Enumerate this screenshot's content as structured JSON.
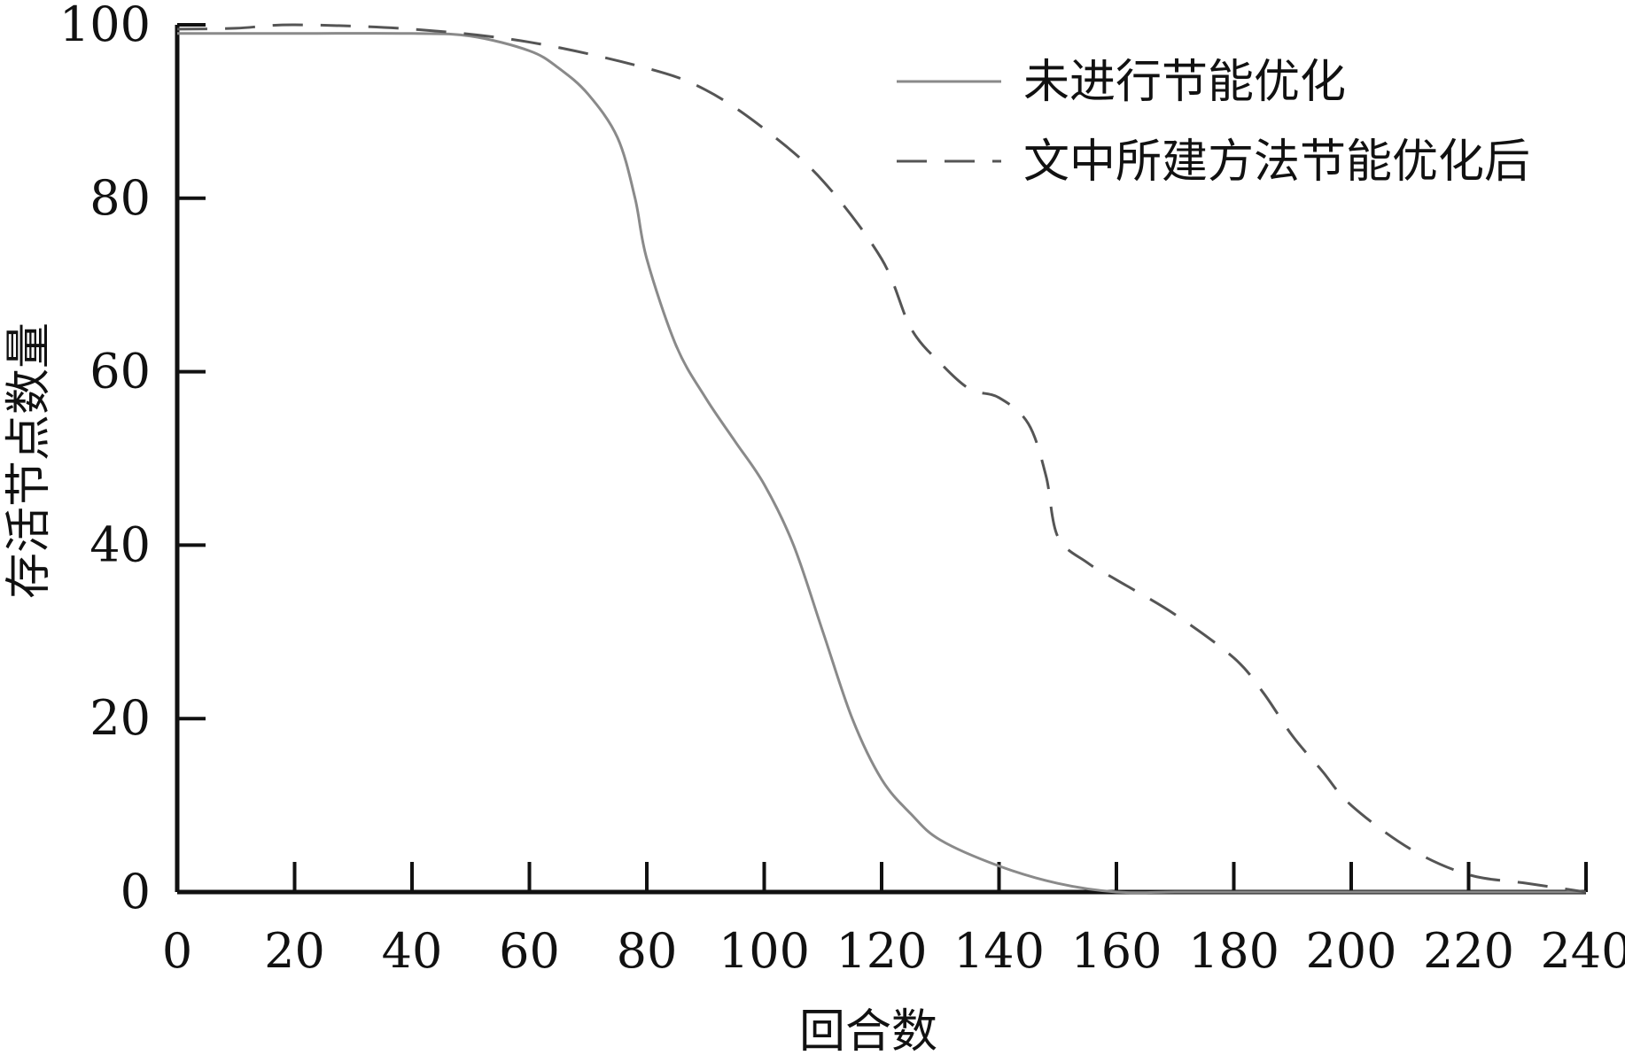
{
  "chart_data": {
    "type": "line",
    "title": "",
    "xlabel": "回合数",
    "ylabel": "存活节点数量",
    "xlim": [
      0,
      240
    ],
    "ylim": [
      0,
      100
    ],
    "x_ticks": [
      0,
      20,
      40,
      60,
      80,
      100,
      120,
      140,
      160,
      180,
      200,
      220,
      240
    ],
    "y_ticks": [
      0,
      20,
      40,
      60,
      80,
      100
    ],
    "grid": false,
    "legend_position": "top-right",
    "series": [
      {
        "name": "未进行节能优化",
        "style": "solid",
        "color": "#8a8a8a",
        "points": [
          [
            0,
            99
          ],
          [
            20,
            99
          ],
          [
            40,
            99
          ],
          [
            50,
            98.7
          ],
          [
            60,
            97
          ],
          [
            65,
            95
          ],
          [
            70,
            92
          ],
          [
            75,
            87
          ],
          [
            78,
            80
          ],
          [
            80,
            73
          ],
          [
            85,
            63
          ],
          [
            90,
            57
          ],
          [
            95,
            52
          ],
          [
            100,
            47
          ],
          [
            105,
            40
          ],
          [
            110,
            30
          ],
          [
            115,
            20
          ],
          [
            120,
            13
          ],
          [
            125,
            9
          ],
          [
            130,
            6
          ],
          [
            140,
            3
          ],
          [
            150,
            1
          ],
          [
            160,
            0
          ],
          [
            170,
            0
          ],
          [
            180,
            0
          ],
          [
            200,
            0
          ],
          [
            220,
            0
          ],
          [
            240,
            0
          ]
        ]
      },
      {
        "name": "文中所建方法节能优化后",
        "style": "dashed",
        "color": "#555555",
        "points": [
          [
            0,
            99.5
          ],
          [
            10,
            99.6
          ],
          [
            20,
            100
          ],
          [
            40,
            99.5
          ],
          [
            60,
            98
          ],
          [
            80,
            95
          ],
          [
            90,
            92.5
          ],
          [
            100,
            88
          ],
          [
            110,
            82
          ],
          [
            120,
            73
          ],
          [
            125,
            65
          ],
          [
            130,
            61
          ],
          [
            135,
            58
          ],
          [
            140,
            57
          ],
          [
            145,
            54
          ],
          [
            148,
            48
          ],
          [
            150,
            41
          ],
          [
            155,
            38
          ],
          [
            160,
            36
          ],
          [
            170,
            32
          ],
          [
            180,
            27
          ],
          [
            185,
            23
          ],
          [
            190,
            18
          ],
          [
            195,
            14
          ],
          [
            200,
            10
          ],
          [
            210,
            5
          ],
          [
            220,
            2
          ],
          [
            230,
            1
          ],
          [
            240,
            0
          ]
        ]
      }
    ]
  }
}
